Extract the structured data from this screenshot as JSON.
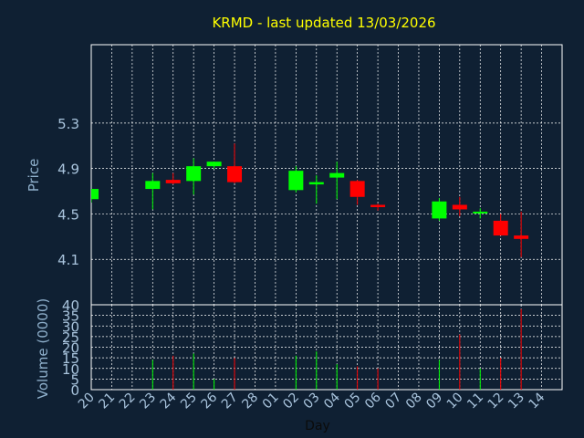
{
  "chart_data": {
    "type": "candlestick",
    "title": "KRMD - last updated 13/03/2026",
    "xlabel": "Day",
    "price_panel": {
      "ylabel": "Price",
      "ylim": [
        3.7,
        5.99
      ],
      "yticks": [
        "5.3",
        "4.9",
        "4.5",
        "4.1"
      ],
      "grid": true
    },
    "volume_panel": {
      "ylabel": "Volume (0000)",
      "ylim": [
        0,
        40
      ],
      "yticks": [
        "0",
        "5",
        "10",
        "15",
        "20",
        "25",
        "30",
        "35",
        "40"
      ],
      "grid": true
    },
    "x_tick_labels": [
      "20",
      "21",
      "22",
      "23",
      "24",
      "25",
      "26",
      "27",
      "28",
      "01",
      "02",
      "03",
      "04",
      "05",
      "06",
      "07",
      "08",
      "09",
      "10",
      "11",
      "12",
      "13",
      "14"
    ],
    "up_color": "#00ff00",
    "down_color": "#ff0000",
    "candles": [
      {
        "day": "20",
        "open": 4.63,
        "high": 4.72,
        "low": 4.6,
        "close": 4.72,
        "volume": 0
      },
      {
        "day": "23",
        "open": 4.72,
        "high": 4.86,
        "low": 4.54,
        "close": 4.79,
        "volume": 14
      },
      {
        "day": "24",
        "open": 4.8,
        "high": 4.86,
        "low": 4.76,
        "close": 4.77,
        "volume": 16
      },
      {
        "day": "25",
        "open": 4.79,
        "high": 4.99,
        "low": 4.67,
        "close": 4.92,
        "volume": 17
      },
      {
        "day": "26",
        "open": 4.92,
        "high": 4.96,
        "low": 4.9,
        "close": 4.96,
        "volume": 5
      },
      {
        "day": "27",
        "open": 4.92,
        "high": 5.12,
        "low": 4.77,
        "close": 4.78,
        "volume": 15
      },
      {
        "day": "02",
        "open": 4.71,
        "high": 4.92,
        "low": 4.69,
        "close": 4.88,
        "volume": 16
      },
      {
        "day": "03",
        "open": 4.76,
        "high": 4.84,
        "low": 4.59,
        "close": 4.78,
        "volume": 18
      },
      {
        "day": "04",
        "open": 4.82,
        "high": 4.96,
        "low": 4.63,
        "close": 4.86,
        "volume": 12
      },
      {
        "day": "05",
        "open": 4.79,
        "high": 4.8,
        "low": 4.58,
        "close": 4.65,
        "volume": 11
      },
      {
        "day": "06",
        "open": 4.58,
        "high": 4.59,
        "low": 4.53,
        "close": 4.56,
        "volume": 10
      },
      {
        "day": "09",
        "open": 4.46,
        "high": 4.64,
        "low": 4.44,
        "close": 4.61,
        "volume": 14
      },
      {
        "day": "10",
        "open": 4.58,
        "high": 4.65,
        "low": 4.48,
        "close": 4.54,
        "volume": 26
      },
      {
        "day": "11",
        "open": 4.51,
        "high": 4.55,
        "low": 4.46,
        "close": 4.52,
        "volume": 10
      },
      {
        "day": "12",
        "open": 4.44,
        "high": 4.5,
        "low": 4.31,
        "close": 4.31,
        "volume": 15
      },
      {
        "day": "13",
        "open": 4.31,
        "high": 4.52,
        "low": 4.12,
        "close": 4.28,
        "volume": 38
      }
    ]
  }
}
